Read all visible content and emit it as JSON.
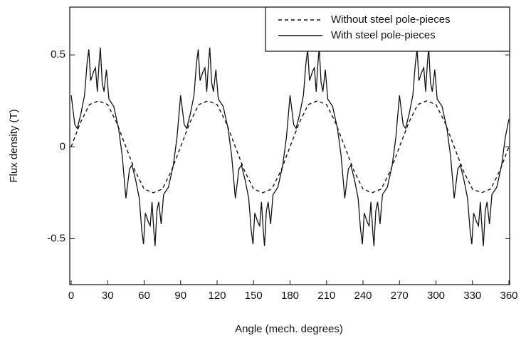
{
  "chart_data": {
    "type": "line",
    "x_label": "Angle (mech. degrees)",
    "y_label": "Flux density (T)",
    "xlim": [
      0,
      360
    ],
    "xticks": [
      0,
      30,
      60,
      90,
      120,
      150,
      180,
      210,
      240,
      270,
      300,
      330,
      360
    ],
    "ylim": [
      -0.75,
      0.76
    ],
    "yticks": [
      0.5,
      0,
      -0.5
    ],
    "grid": false,
    "legend": "upper right",
    "series": [
      {
        "name": "Without steel pole-pieces",
        "color": "#111111",
        "dash": true,
        "x": [
          0,
          7.5,
          15,
          22.5,
          30,
          37.5,
          45,
          52.5,
          60,
          67.5,
          75,
          82.5,
          90,
          97.5,
          105,
          112.5,
          120,
          127.5,
          135,
          142.5,
          150,
          157.5,
          165,
          172.5,
          180,
          187.5,
          195,
          202.5,
          210,
          217.5,
          225,
          232.5,
          240,
          247.5,
          255,
          262.5,
          270,
          277.5,
          285,
          292.5,
          300,
          307.5,
          315,
          322.5,
          330,
          337.5,
          345,
          352.5,
          360
        ],
        "values": [
          0,
          0.13,
          0.23,
          0.25,
          0.23,
          0.13,
          0,
          -0.13,
          -0.23,
          -0.25,
          -0.23,
          -0.13,
          0,
          0.13,
          0.23,
          0.25,
          0.23,
          0.13,
          0,
          -0.13,
          -0.23,
          -0.25,
          -0.23,
          -0.13,
          0,
          0.13,
          0.23,
          0.25,
          0.23,
          0.13,
          0,
          -0.13,
          -0.23,
          -0.25,
          -0.23,
          -0.13,
          0,
          0.13,
          0.23,
          0.25,
          0.23,
          0.13,
          0,
          -0.13,
          -0.23,
          -0.25,
          -0.23,
          -0.13,
          0
        ]
      },
      {
        "name": "With steel pole-pieces",
        "color": "#111111",
        "dash": false,
        "x": [
          0,
          3,
          5,
          8,
          11,
          13,
          14.5,
          16,
          18.5,
          20,
          21.5,
          23,
          24,
          25.5,
          27,
          29,
          31,
          35,
          39,
          42,
          45,
          48,
          50,
          53,
          56,
          58,
          59.5,
          61,
          63.5,
          65,
          66.5,
          68,
          69,
          70.5,
          72,
          74,
          76,
          80,
          84,
          87,
          90,
          93,
          95,
          98,
          101,
          103,
          104.5,
          106,
          108.5,
          110,
          111.5,
          113,
          114,
          115.5,
          117,
          119,
          121,
          125,
          129,
          132,
          135,
          138,
          140,
          143,
          146,
          148,
          149.5,
          151,
          153.5,
          155,
          156.5,
          158,
          159,
          160.5,
          162,
          164,
          166,
          170,
          174,
          177,
          180,
          183,
          185,
          188,
          191,
          193,
          194.5,
          196,
          198.5,
          200,
          201.5,
          203,
          204,
          205.5,
          207,
          209,
          211,
          215,
          219,
          222,
          225,
          228,
          230,
          233,
          236,
          238,
          239.5,
          241,
          243.5,
          245,
          246.5,
          248,
          249,
          250.5,
          252,
          254,
          256,
          260,
          264,
          267,
          270,
          273,
          275,
          278,
          281,
          283,
          284.5,
          286,
          288.5,
          290,
          291.5,
          293,
          294,
          295.5,
          297,
          299,
          301,
          305,
          309,
          312,
          315,
          318,
          320,
          323,
          326,
          328,
          329.5,
          331,
          333.5,
          335,
          336.5,
          338,
          339,
          340.5,
          342,
          344,
          346,
          350,
          354,
          357,
          360
        ],
        "values": [
          0.28,
          0.12,
          0.1,
          0.18,
          0.28,
          0.45,
          0.53,
          0.36,
          0.41,
          0.43,
          0.3,
          0.46,
          0.54,
          0.35,
          0.3,
          0.42,
          0.26,
          0.22,
          0.1,
          -0.05,
          -0.28,
          -0.12,
          -0.1,
          -0.18,
          -0.28,
          -0.45,
          -0.53,
          -0.36,
          -0.41,
          -0.43,
          -0.3,
          -0.46,
          -0.54,
          -0.35,
          -0.3,
          -0.42,
          -0.26,
          -0.22,
          -0.1,
          0.05,
          0.28,
          0.12,
          0.1,
          0.18,
          0.28,
          0.45,
          0.53,
          0.36,
          0.41,
          0.43,
          0.3,
          0.46,
          0.54,
          0.35,
          0.3,
          0.42,
          0.26,
          0.22,
          0.1,
          -0.05,
          -0.28,
          -0.12,
          -0.1,
          -0.18,
          -0.28,
          -0.45,
          -0.53,
          -0.36,
          -0.41,
          -0.43,
          -0.3,
          -0.46,
          -0.54,
          -0.35,
          -0.3,
          -0.42,
          -0.26,
          -0.22,
          -0.1,
          0.05,
          0.28,
          0.12,
          0.1,
          0.18,
          0.28,
          0.45,
          0.53,
          0.36,
          0.41,
          0.43,
          0.3,
          0.46,
          0.54,
          0.35,
          0.3,
          0.42,
          0.26,
          0.22,
          0.1,
          -0.05,
          -0.28,
          -0.12,
          -0.1,
          -0.18,
          -0.28,
          -0.45,
          -0.53,
          -0.36,
          -0.41,
          -0.43,
          -0.3,
          -0.46,
          -0.54,
          -0.35,
          -0.3,
          -0.42,
          -0.26,
          -0.22,
          -0.1,
          0.05,
          0.28,
          0.12,
          0.1,
          0.18,
          0.28,
          0.45,
          0.53,
          0.36,
          0.41,
          0.43,
          0.3,
          0.46,
          0.54,
          0.35,
          0.3,
          0.42,
          0.26,
          0.22,
          0.1,
          -0.05,
          -0.28,
          -0.12,
          -0.1,
          -0.18,
          -0.28,
          -0.45,
          -0.53,
          -0.36,
          -0.41,
          -0.43,
          -0.3,
          -0.46,
          -0.54,
          -0.35,
          -0.3,
          -0.42,
          -0.26,
          -0.22,
          -0.1,
          0.05,
          0.15
        ]
      }
    ]
  }
}
